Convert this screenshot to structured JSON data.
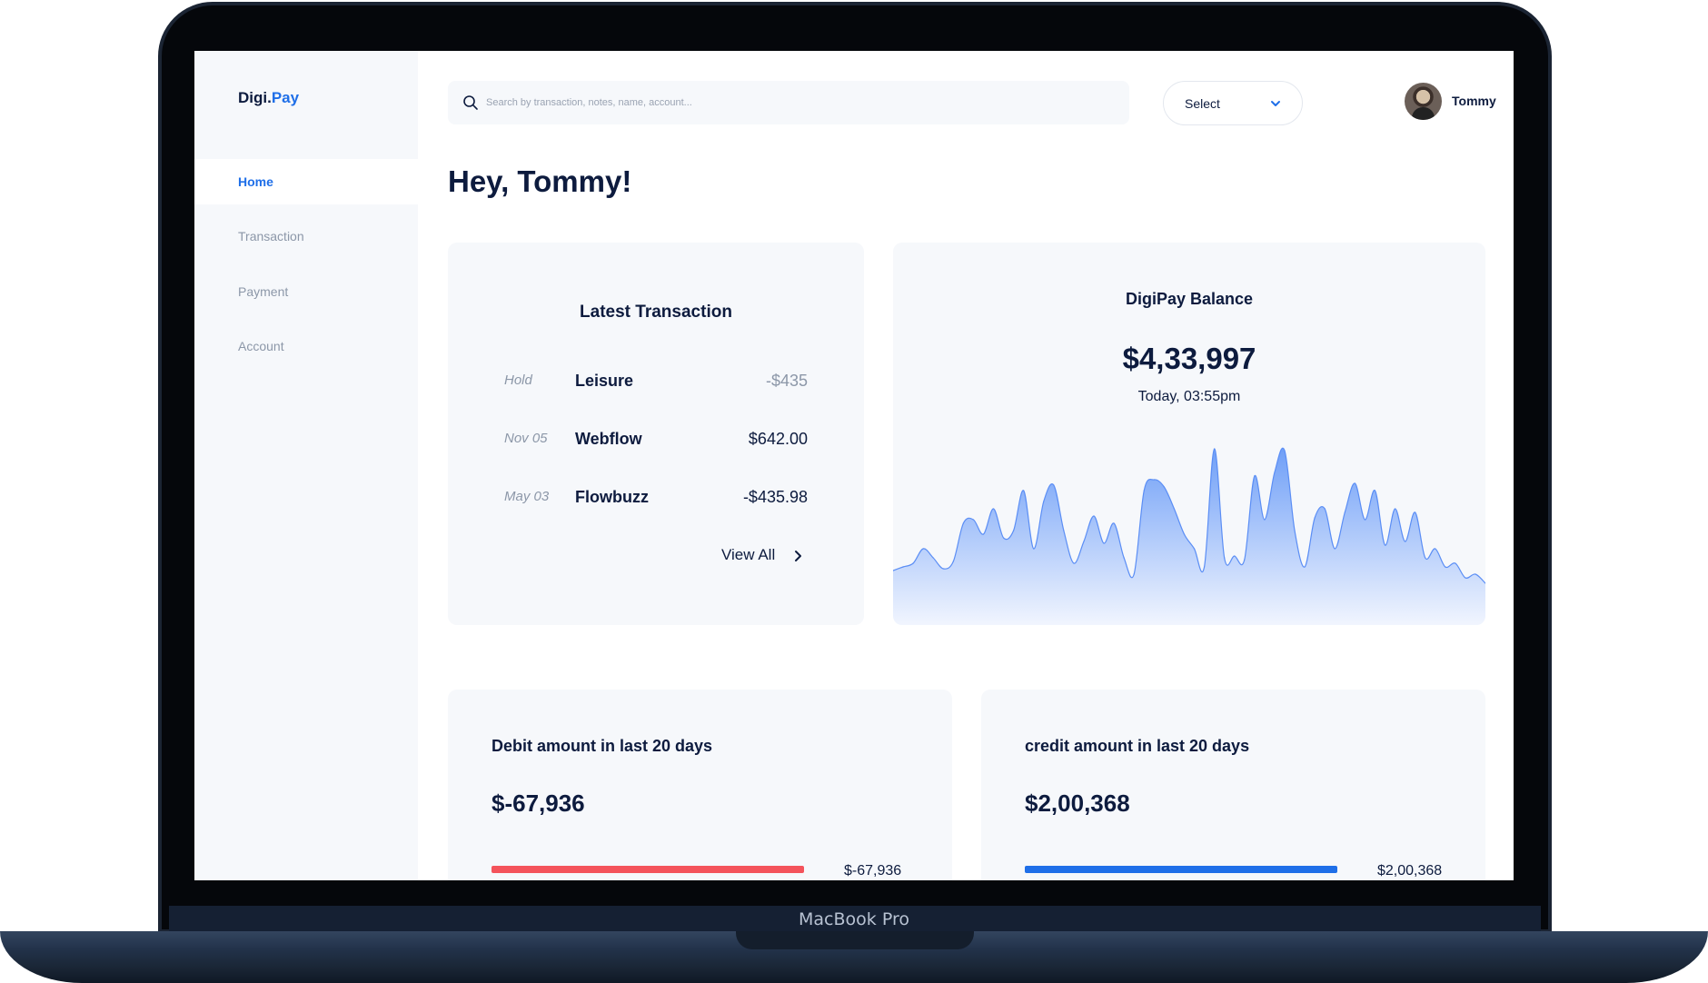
{
  "device_label": "MacBook Pro",
  "brand": {
    "name_part1": "Digi.",
    "name_part2": "Pay"
  },
  "sidebar": {
    "items": [
      {
        "label": "Home",
        "active": true
      },
      {
        "label": "Transaction",
        "active": false
      },
      {
        "label": "Payment",
        "active": false
      },
      {
        "label": "Account",
        "active": false
      }
    ]
  },
  "search": {
    "placeholder": "Search by transaction, notes, name, account..."
  },
  "select": {
    "label": "Select"
  },
  "user": {
    "name": "Tommy"
  },
  "greeting": "Hey, Tommy!",
  "latest_transaction": {
    "title": "Latest Transaction",
    "rows": [
      {
        "date": "Hold",
        "name": "Leisure",
        "amount": "-$435"
      },
      {
        "date": "Nov 05",
        "name": "Webflow",
        "amount": "$642.00"
      },
      {
        "date": "May 03",
        "name": "Flowbuzz",
        "amount": "-$435.98"
      }
    ],
    "view_all": "View All"
  },
  "balance": {
    "title": "DigiPay Balance",
    "amount": "$4,33,997",
    "timestamp": "Today, 03:55pm"
  },
  "chart_data": {
    "type": "area",
    "title": "",
    "xlabel": "",
    "ylabel": "",
    "grid": false,
    "legend": "none",
    "values": [
      18,
      20,
      22,
      30,
      25,
      19,
      23,
      44,
      46,
      38,
      52,
      36,
      40,
      62,
      30,
      56,
      65,
      40,
      22,
      34,
      48,
      33,
      44,
      25,
      16,
      62,
      68,
      64,
      52,
      38,
      30,
      20,
      85,
      25,
      26,
      24,
      70,
      46,
      72,
      84,
      40,
      20,
      47,
      52,
      30,
      50,
      66,
      46,
      62,
      32,
      52,
      34,
      50,
      25,
      30,
      20,
      22,
      14,
      16,
      11
    ],
    "colors": {
      "line": "#5b8ef5",
      "fill_top": "#6f9ff7",
      "fill_bottom": "#f1f5fe"
    }
  },
  "debit": {
    "title": "Debit amount in last 20 days",
    "amount": "$-67,936",
    "bar_label": "$-67,936",
    "bar_color": "#f4535b"
  },
  "credit": {
    "title": "credit amount in last 20 days",
    "amount": "$2,00,368",
    "bar_label": "$2,00,368",
    "bar_color": "#1f6fe8"
  }
}
